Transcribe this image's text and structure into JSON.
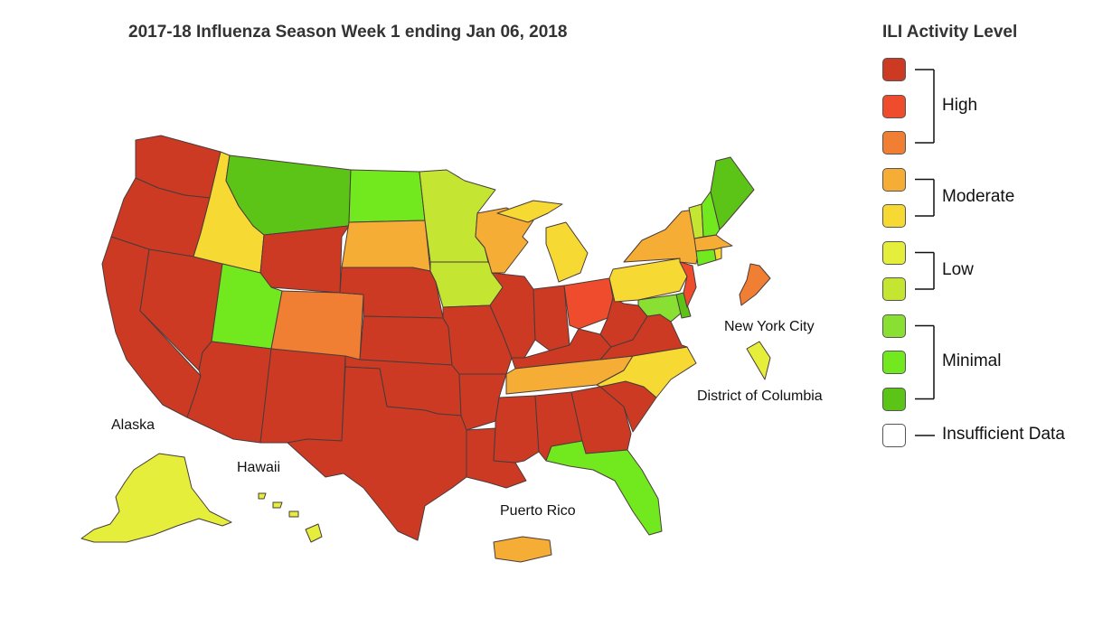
{
  "title": "2017-18 Influenza Season Week 1 ending Jan 06, 2018",
  "legend": {
    "title": "ILI Activity Level",
    "groups": [
      {
        "label": "High",
        "colors": [
          "#cc3a23",
          "#ee4c2d",
          "#f07f33"
        ]
      },
      {
        "label": "Moderate",
        "colors": [
          "#f5ad35",
          "#f7d934"
        ]
      },
      {
        "label": "Low",
        "colors": [
          "#e4ee3b",
          "#c4e633"
        ]
      },
      {
        "label": "Minimal",
        "colors": [
          "#8ae032",
          "#72e81f",
          "#5cc416"
        ]
      },
      {
        "label": "Insufficient Data",
        "colors": [
          "#ffffff"
        ]
      }
    ]
  },
  "map_labels": {
    "alaska": "Alaska",
    "hawaii": "Hawaii",
    "puerto_rico": "Puerto Rico",
    "new_york_city": "New York City",
    "district_of_columbia": "District of Columbia"
  },
  "activity_colors": {
    "high_10": "#cc3a23",
    "high_9": "#ee4c2d",
    "high_8": "#f07f33",
    "moderate_7": "#f5ad35",
    "moderate_6": "#f7d934",
    "low_5": "#e4ee3b",
    "low_4": "#c4e633",
    "minimal_3": "#8ae032",
    "minimal_2": "#72e81f",
    "minimal_1": "#5cc416",
    "insufficient": "#ffffff"
  },
  "regions": [
    {
      "name": "Washington",
      "level": "high_10"
    },
    {
      "name": "Oregon",
      "level": "high_10"
    },
    {
      "name": "California",
      "level": "high_10"
    },
    {
      "name": "Nevada",
      "level": "high_10"
    },
    {
      "name": "Idaho",
      "level": "moderate_6"
    },
    {
      "name": "Montana",
      "level": "minimal_1"
    },
    {
      "name": "Wyoming",
      "level": "high_10"
    },
    {
      "name": "Utah",
      "level": "minimal_2"
    },
    {
      "name": "Colorado",
      "level": "high_8"
    },
    {
      "name": "Arizona",
      "level": "high_10"
    },
    {
      "name": "New Mexico",
      "level": "high_10"
    },
    {
      "name": "North Dakota",
      "level": "minimal_2"
    },
    {
      "name": "South Dakota",
      "level": "moderate_7"
    },
    {
      "name": "Nebraska",
      "level": "high_10"
    },
    {
      "name": "Kansas",
      "level": "high_10"
    },
    {
      "name": "Oklahoma",
      "level": "high_10"
    },
    {
      "name": "Texas",
      "level": "high_10"
    },
    {
      "name": "Minnesota",
      "level": "low_4"
    },
    {
      "name": "Iowa",
      "level": "low_4"
    },
    {
      "name": "Missouri",
      "level": "high_10"
    },
    {
      "name": "Arkansas",
      "level": "high_10"
    },
    {
      "name": "Louisiana",
      "level": "high_10"
    },
    {
      "name": "Wisconsin",
      "level": "moderate_7"
    },
    {
      "name": "Illinois",
      "level": "high_10"
    },
    {
      "name": "Michigan",
      "level": "moderate_6"
    },
    {
      "name": "Indiana",
      "level": "high_10"
    },
    {
      "name": "Ohio",
      "level": "high_9"
    },
    {
      "name": "Kentucky",
      "level": "high_10"
    },
    {
      "name": "Tennessee",
      "level": "moderate_7"
    },
    {
      "name": "Mississippi",
      "level": "high_10"
    },
    {
      "name": "Alabama",
      "level": "high_10"
    },
    {
      "name": "Georgia",
      "level": "high_10"
    },
    {
      "name": "Florida",
      "level": "minimal_2"
    },
    {
      "name": "South Carolina",
      "level": "high_10"
    },
    {
      "name": "North Carolina",
      "level": "moderate_6"
    },
    {
      "name": "Virginia",
      "level": "high_10"
    },
    {
      "name": "West Virginia",
      "level": "high_10"
    },
    {
      "name": "Maryland",
      "level": "minimal_3"
    },
    {
      "name": "Delaware",
      "level": "minimal_1"
    },
    {
      "name": "New Jersey",
      "level": "high_9"
    },
    {
      "name": "Pennsylvania",
      "level": "moderate_6"
    },
    {
      "name": "New York",
      "level": "moderate_7"
    },
    {
      "name": "Connecticut",
      "level": "minimal_2"
    },
    {
      "name": "Rhode Island",
      "level": "moderate_6"
    },
    {
      "name": "Massachusetts",
      "level": "moderate_7"
    },
    {
      "name": "Vermont",
      "level": "low_4"
    },
    {
      "name": "New Hampshire",
      "level": "minimal_2"
    },
    {
      "name": "Maine",
      "level": "minimal_1"
    },
    {
      "name": "Alaska",
      "level": "low_5"
    },
    {
      "name": "Hawaii",
      "level": "low_5"
    },
    {
      "name": "Puerto Rico",
      "level": "moderate_7"
    },
    {
      "name": "New York City",
      "level": "high_8"
    },
    {
      "name": "District of Columbia",
      "level": "low_5"
    }
  ]
}
